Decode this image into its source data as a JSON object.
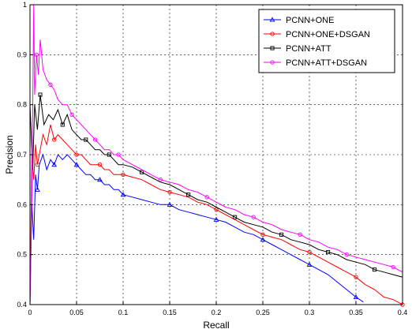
{
  "chart_data": {
    "type": "line",
    "title": "",
    "xlabel": "Recall",
    "ylabel": "Precision",
    "xlim": [
      0,
      0.4
    ],
    "ylim": [
      0.4,
      1.0
    ],
    "grid": true,
    "legend_position": "top-right",
    "x_ticks": [
      "0",
      "0.05",
      "0.1",
      "0.15",
      "0.2",
      "0.25",
      "0.3",
      "0.35",
      "0.4"
    ],
    "y_ticks": [
      "0.4",
      "0.5",
      "0.6",
      "0.7",
      "0.8",
      "0.9",
      "1"
    ],
    "series": [
      {
        "name": "PCNN+ONE",
        "color": "#0000ff",
        "marker": "triangle",
        "points": [
          [
            0.0,
            0.4
          ],
          [
            0.002,
            0.6
          ],
          [
            0.004,
            0.53
          ],
          [
            0.006,
            0.66
          ],
          [
            0.008,
            0.63
          ],
          [
            0.01,
            0.68
          ],
          [
            0.014,
            0.7
          ],
          [
            0.018,
            0.67
          ],
          [
            0.022,
            0.69
          ],
          [
            0.026,
            0.68
          ],
          [
            0.03,
            0.7
          ],
          [
            0.035,
            0.69
          ],
          [
            0.04,
            0.7
          ],
          [
            0.045,
            0.69
          ],
          [
            0.05,
            0.68
          ],
          [
            0.055,
            0.67
          ],
          [
            0.06,
            0.66
          ],
          [
            0.065,
            0.66
          ],
          [
            0.07,
            0.65
          ],
          [
            0.075,
            0.65
          ],
          [
            0.08,
            0.64
          ],
          [
            0.085,
            0.64
          ],
          [
            0.09,
            0.63
          ],
          [
            0.095,
            0.63
          ],
          [
            0.1,
            0.62
          ],
          [
            0.11,
            0.615
          ],
          [
            0.12,
            0.61
          ],
          [
            0.13,
            0.605
          ],
          [
            0.14,
            0.6
          ],
          [
            0.15,
            0.6
          ],
          [
            0.16,
            0.59
          ],
          [
            0.17,
            0.585
          ],
          [
            0.18,
            0.58
          ],
          [
            0.19,
            0.575
          ],
          [
            0.2,
            0.57
          ],
          [
            0.21,
            0.565
          ],
          [
            0.22,
            0.555
          ],
          [
            0.23,
            0.545
          ],
          [
            0.24,
            0.54
          ],
          [
            0.25,
            0.53
          ],
          [
            0.26,
            0.52
          ],
          [
            0.27,
            0.51
          ],
          [
            0.28,
            0.5
          ],
          [
            0.29,
            0.49
          ],
          [
            0.3,
            0.48
          ],
          [
            0.31,
            0.47
          ],
          [
            0.32,
            0.46
          ],
          [
            0.33,
            0.445
          ],
          [
            0.34,
            0.43
          ],
          [
            0.35,
            0.415
          ],
          [
            0.358,
            0.405
          ]
        ]
      },
      {
        "name": "PCNN+ONE+DSGAN",
        "color": "#ff0000",
        "marker": "circle",
        "points": [
          [
            0.0,
            0.4
          ],
          [
            0.002,
            0.7
          ],
          [
            0.004,
            0.65
          ],
          [
            0.006,
            0.72
          ],
          [
            0.008,
            0.68
          ],
          [
            0.01,
            0.7
          ],
          [
            0.014,
            0.74
          ],
          [
            0.018,
            0.72
          ],
          [
            0.022,
            0.76
          ],
          [
            0.026,
            0.73
          ],
          [
            0.03,
            0.74
          ],
          [
            0.035,
            0.73
          ],
          [
            0.04,
            0.72
          ],
          [
            0.045,
            0.71
          ],
          [
            0.05,
            0.7
          ],
          [
            0.055,
            0.7
          ],
          [
            0.06,
            0.69
          ],
          [
            0.065,
            0.68
          ],
          [
            0.07,
            0.68
          ],
          [
            0.075,
            0.68
          ],
          [
            0.08,
            0.67
          ],
          [
            0.085,
            0.67
          ],
          [
            0.09,
            0.66
          ],
          [
            0.095,
            0.66
          ],
          [
            0.1,
            0.66
          ],
          [
            0.11,
            0.655
          ],
          [
            0.12,
            0.65
          ],
          [
            0.13,
            0.64
          ],
          [
            0.14,
            0.63
          ],
          [
            0.15,
            0.625
          ],
          [
            0.16,
            0.62
          ],
          [
            0.17,
            0.615
          ],
          [
            0.18,
            0.605
          ],
          [
            0.19,
            0.6
          ],
          [
            0.2,
            0.59
          ],
          [
            0.21,
            0.58
          ],
          [
            0.22,
            0.57
          ],
          [
            0.23,
            0.56
          ],
          [
            0.24,
            0.55
          ],
          [
            0.25,
            0.54
          ],
          [
            0.26,
            0.535
          ],
          [
            0.27,
            0.53
          ],
          [
            0.28,
            0.52
          ],
          [
            0.29,
            0.51
          ],
          [
            0.3,
            0.505
          ],
          [
            0.31,
            0.495
          ],
          [
            0.32,
            0.485
          ],
          [
            0.33,
            0.475
          ],
          [
            0.34,
            0.465
          ],
          [
            0.35,
            0.455
          ],
          [
            0.36,
            0.44
          ],
          [
            0.37,
            0.43
          ],
          [
            0.38,
            0.415
          ],
          [
            0.39,
            0.41
          ],
          [
            0.4,
            0.4
          ]
        ]
      },
      {
        "name": "PCNN+ATT",
        "color": "#000000",
        "marker": "square",
        "points": [
          [
            0.0,
            0.8
          ],
          [
            0.003,
            0.67
          ],
          [
            0.005,
            0.8
          ],
          [
            0.008,
            0.75
          ],
          [
            0.011,
            0.82
          ],
          [
            0.015,
            0.76
          ],
          [
            0.02,
            0.78
          ],
          [
            0.025,
            0.77
          ],
          [
            0.03,
            0.79
          ],
          [
            0.035,
            0.76
          ],
          [
            0.04,
            0.78
          ],
          [
            0.045,
            0.75
          ],
          [
            0.05,
            0.74
          ],
          [
            0.055,
            0.73
          ],
          [
            0.06,
            0.73
          ],
          [
            0.065,
            0.72
          ],
          [
            0.07,
            0.71
          ],
          [
            0.075,
            0.71
          ],
          [
            0.08,
            0.7
          ],
          [
            0.085,
            0.7
          ],
          [
            0.09,
            0.69
          ],
          [
            0.095,
            0.68
          ],
          [
            0.1,
            0.68
          ],
          [
            0.11,
            0.675
          ],
          [
            0.12,
            0.665
          ],
          [
            0.13,
            0.655
          ],
          [
            0.14,
            0.645
          ],
          [
            0.15,
            0.64
          ],
          [
            0.16,
            0.63
          ],
          [
            0.17,
            0.62
          ],
          [
            0.18,
            0.61
          ],
          [
            0.19,
            0.605
          ],
          [
            0.2,
            0.595
          ],
          [
            0.21,
            0.585
          ],
          [
            0.22,
            0.575
          ],
          [
            0.23,
            0.565
          ],
          [
            0.24,
            0.56
          ],
          [
            0.25,
            0.555
          ],
          [
            0.26,
            0.545
          ],
          [
            0.27,
            0.54
          ],
          [
            0.28,
            0.53
          ],
          [
            0.29,
            0.525
          ],
          [
            0.3,
            0.52
          ],
          [
            0.31,
            0.51
          ],
          [
            0.32,
            0.505
          ],
          [
            0.33,
            0.5
          ],
          [
            0.34,
            0.49
          ],
          [
            0.35,
            0.485
          ],
          [
            0.36,
            0.48
          ],
          [
            0.37,
            0.47
          ],
          [
            0.38,
            0.465
          ],
          [
            0.39,
            0.46
          ],
          [
            0.4,
            0.455
          ]
        ]
      },
      {
        "name": "PCNN+ATT+DSGAN",
        "color": "#ff00ff",
        "marker": "circle",
        "points": [
          [
            0.0,
            0.4
          ],
          [
            0.002,
            0.62
          ],
          [
            0.004,
            1.0
          ],
          [
            0.005,
            0.82
          ],
          [
            0.007,
            0.9
          ],
          [
            0.009,
            0.86
          ],
          [
            0.011,
            0.93
          ],
          [
            0.014,
            0.87
          ],
          [
            0.018,
            0.85
          ],
          [
            0.022,
            0.84
          ],
          [
            0.026,
            0.83
          ],
          [
            0.03,
            0.81
          ],
          [
            0.035,
            0.8
          ],
          [
            0.04,
            0.8
          ],
          [
            0.045,
            0.78
          ],
          [
            0.05,
            0.77
          ],
          [
            0.055,
            0.76
          ],
          [
            0.06,
            0.75
          ],
          [
            0.065,
            0.74
          ],
          [
            0.07,
            0.73
          ],
          [
            0.075,
            0.72
          ],
          [
            0.08,
            0.71
          ],
          [
            0.085,
            0.71
          ],
          [
            0.09,
            0.7
          ],
          [
            0.095,
            0.7
          ],
          [
            0.1,
            0.69
          ],
          [
            0.11,
            0.68
          ],
          [
            0.12,
            0.67
          ],
          [
            0.13,
            0.66
          ],
          [
            0.14,
            0.65
          ],
          [
            0.15,
            0.645
          ],
          [
            0.16,
            0.64
          ],
          [
            0.17,
            0.63
          ],
          [
            0.18,
            0.625
          ],
          [
            0.19,
            0.615
          ],
          [
            0.2,
            0.605
          ],
          [
            0.21,
            0.595
          ],
          [
            0.22,
            0.59
          ],
          [
            0.23,
            0.58
          ],
          [
            0.24,
            0.575
          ],
          [
            0.25,
            0.565
          ],
          [
            0.26,
            0.56
          ],
          [
            0.27,
            0.55
          ],
          [
            0.28,
            0.545
          ],
          [
            0.29,
            0.54
          ],
          [
            0.3,
            0.53
          ],
          [
            0.31,
            0.525
          ],
          [
            0.32,
            0.515
          ],
          [
            0.33,
            0.51
          ],
          [
            0.34,
            0.5
          ],
          [
            0.35,
            0.495
          ],
          [
            0.36,
            0.49
          ],
          [
            0.37,
            0.485
          ],
          [
            0.38,
            0.48
          ],
          [
            0.39,
            0.475
          ],
          [
            0.4,
            0.465
          ]
        ]
      }
    ]
  }
}
